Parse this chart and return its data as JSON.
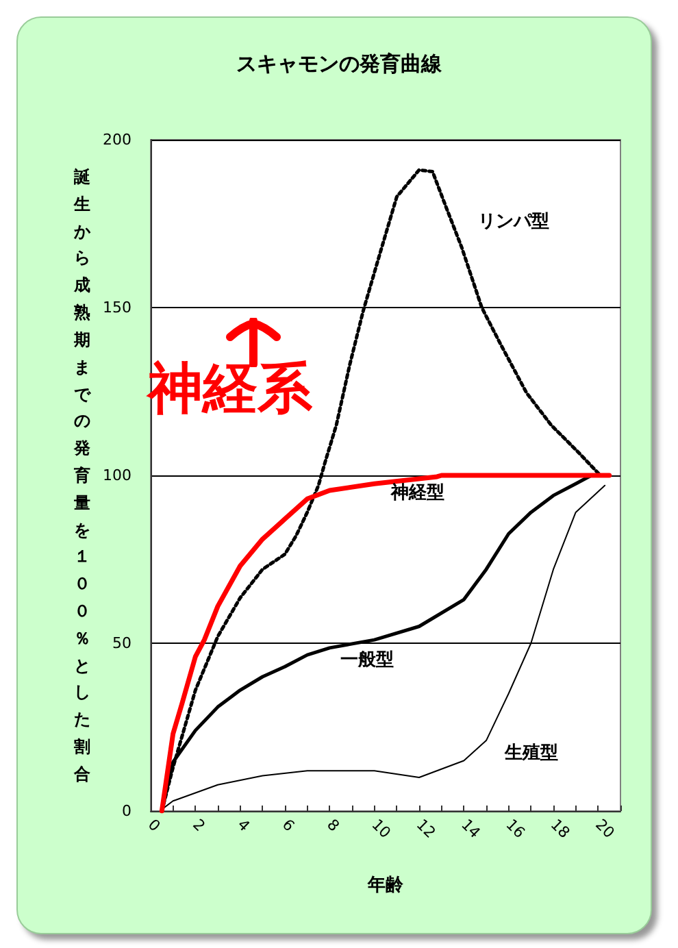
{
  "chart_data": {
    "type": "line",
    "title": "スキャモンの発育曲線",
    "xlabel": "年齢",
    "ylabel": "誕生から成熟期までの発育量を１００％とした割合",
    "xlim": [
      0,
      21
    ],
    "xticks": [
      0,
      {
        "value": 1,
        "label": null
      },
      2,
      {
        "value": 3,
        "label": null
      },
      4,
      {
        "value": 5,
        "label": null
      },
      6,
      {
        "value": 7,
        "label": null
      },
      8,
      {
        "value": 9,
        "label": null
      },
      10,
      {
        "value": 11,
        "label": null
      },
      12,
      {
        "value": 13,
        "label": null
      },
      14,
      {
        "value": 15,
        "label": null
      },
      16,
      {
        "value": 17,
        "label": null
      },
      18,
      {
        "value": 19,
        "label": null
      },
      20,
      {
        "value": 21,
        "label": null
      }
    ],
    "ylim": [
      0,
      200
    ],
    "yticks": [
      0,
      50,
      100,
      150,
      200
    ],
    "grid": "y",
    "marker": "none",
    "series": [
      {
        "color": "#ff0000",
        "line_style": "solid",
        "x": [
          0.5,
          1,
          1.4,
          2,
          2.4,
          3,
          4,
          5,
          6,
          7,
          8,
          10,
          12.8,
          13,
          20.5
        ],
        "values": [
          0,
          23,
          32,
          46,
          51,
          61,
          73,
          81,
          87,
          93,
          95.5,
          97.5,
          99.6,
          100,
          100
        ]
      },
      {
        "color": "#000000",
        "line_style": "dotted",
        "x": [
          0.5,
          1,
          2,
          3,
          4,
          5,
          6,
          6.5,
          7,
          7.5,
          7.8,
          8.3,
          8.9,
          9.5,
          10.2,
          11,
          12,
          12.6,
          13.2,
          13.9,
          14.8,
          15.6,
          16.8,
          17.9,
          19.1,
          20.1
        ],
        "values": [
          0,
          13,
          36,
          52,
          63.5,
          72,
          76.5,
          82,
          89,
          97,
          104,
          115,
          133,
          149,
          165,
          183,
          191,
          190.5,
          180,
          168,
          150,
          139.6,
          124.6,
          115,
          107,
          100
        ]
      },
      {
        "color": "#000000",
        "line_style": "solid",
        "x": [
          0.5,
          1,
          2,
          3,
          4,
          5,
          6,
          7,
          8,
          10,
          12,
          14,
          15,
          16,
          17,
          18,
          19,
          19.7
        ],
        "values": [
          0,
          14.6,
          24,
          31,
          36,
          40,
          43,
          46.5,
          48.6,
          51,
          55,
          63,
          72,
          82.6,
          89,
          94,
          97.5,
          100
        ]
      },
      {
        "color": "#000000",
        "line_style": "solid",
        "x": [
          0.6,
          1,
          3,
          5,
          7,
          10,
          12,
          14,
          15,
          16,
          17,
          18,
          19,
          20.3
        ],
        "values": [
          1,
          3,
          7.8,
          10.5,
          12,
          12,
          10,
          15,
          21,
          35,
          50,
          72,
          89,
          97
        ]
      }
    ],
    "annotations": [
      "神経系",
      "リンパ型",
      "神経型",
      "一般型",
      "生殖型"
    ]
  }
}
